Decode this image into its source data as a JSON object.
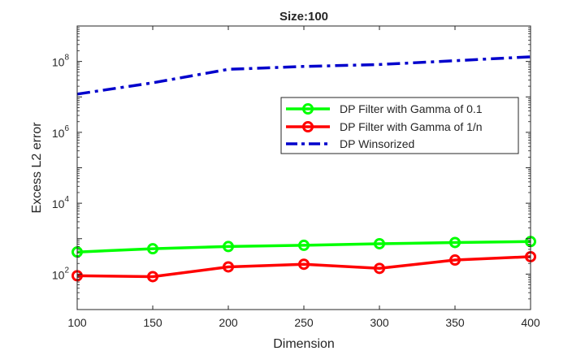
{
  "chart_data": {
    "type": "line",
    "title": "Size:100",
    "xlabel": "Dimension",
    "ylabel": "Excess L2 error",
    "yscale": "log",
    "xlim": [
      100,
      400
    ],
    "ylim": [
      10,
      1000000000
    ],
    "x": [
      100,
      150,
      200,
      250,
      300,
      350,
      400
    ],
    "xticks": [
      100,
      150,
      200,
      250,
      300,
      350,
      400
    ],
    "yticks": [
      {
        "value": 100,
        "base": "10",
        "exp": "2"
      },
      {
        "value": 10000,
        "base": "10",
        "exp": "4"
      },
      {
        "value": 1000000,
        "base": "10",
        "exp": "6"
      },
      {
        "value": 100000000,
        "base": "10",
        "exp": "8"
      }
    ],
    "legend_position": "upper-right",
    "series": [
      {
        "name": "DP Filter with Gamma of 0.1",
        "color": "#00ff00",
        "style": "solid",
        "marker": "circle",
        "values": [
          420,
          520,
          600,
          650,
          720,
          780,
          830
        ]
      },
      {
        "name": "DP Filter with Gamma of 1/n",
        "color": "#ff0000",
        "style": "solid",
        "marker": "circle",
        "values": [
          90,
          85,
          160,
          190,
          145,
          250,
          310
        ]
      },
      {
        "name": "DP Winsorized",
        "color": "#0000cc",
        "style": "dashdot",
        "marker": "none",
        "values": [
          12000000,
          25000000,
          60000000,
          72000000,
          82000000,
          105000000,
          135000000
        ]
      }
    ]
  }
}
